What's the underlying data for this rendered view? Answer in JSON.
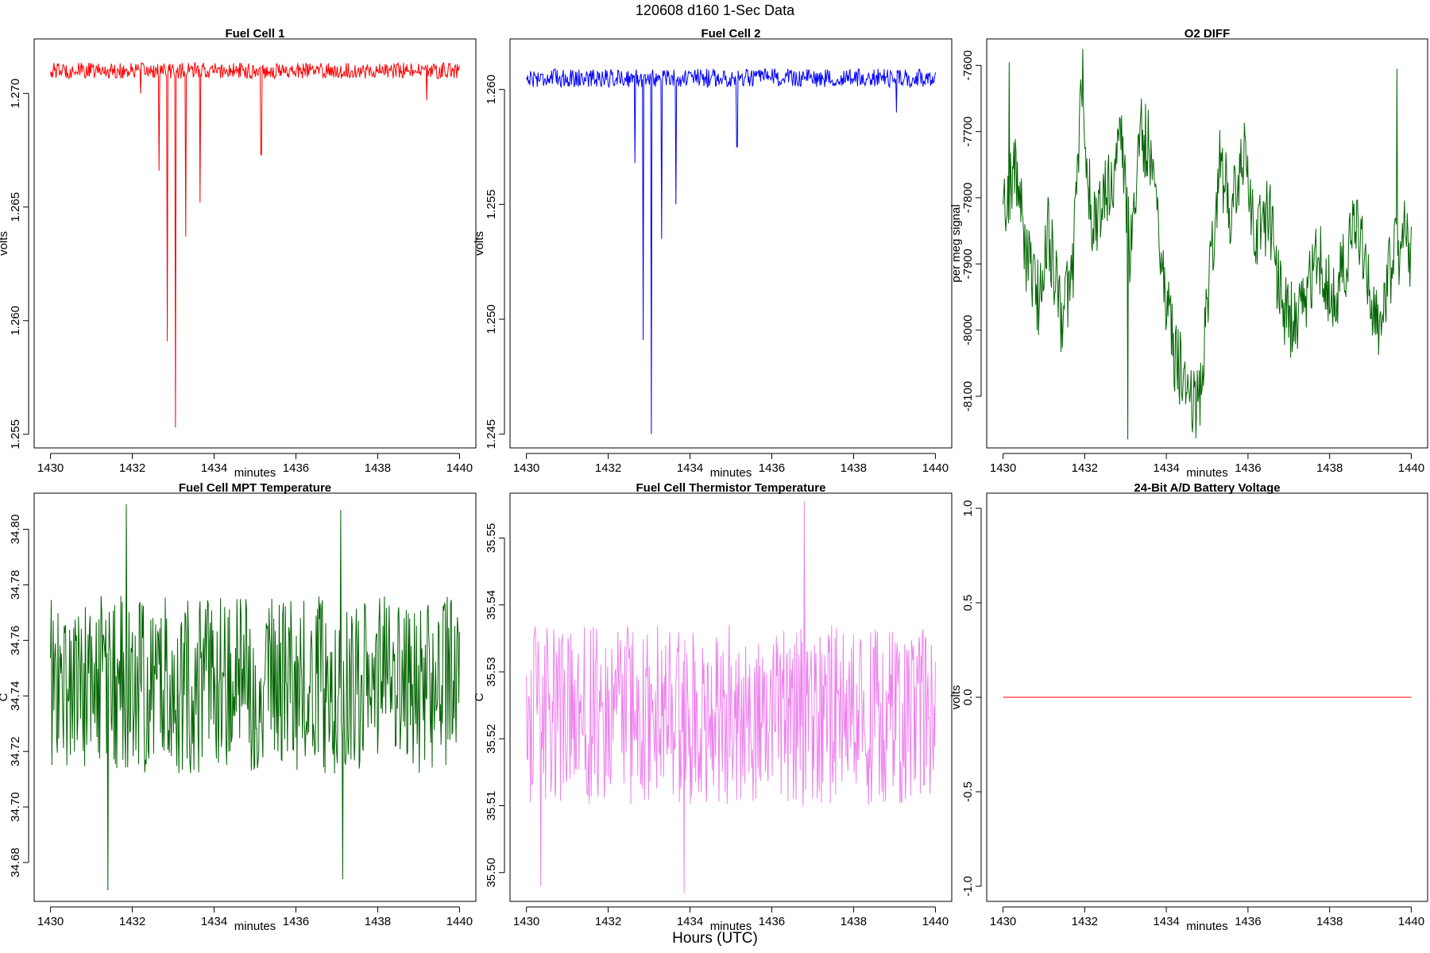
{
  "figure": {
    "title": "120608   d160   1-Sec Data",
    "xlabel": "Hours (UTC)"
  },
  "chart_data": [
    {
      "type": "line",
      "title": "Fuel Cell 1",
      "xlabel": "minutes",
      "ylabel": "volts",
      "xlim": [
        1429.6,
        1440.4
      ],
      "ylim": [
        1.2544,
        1.2724
      ],
      "xticks": [
        1430,
        1432,
        1434,
        1436,
        1438,
        1440
      ],
      "yticks": [
        1.255,
        1.26,
        1.265,
        1.27
      ],
      "ytick_labels": [
        "1.255",
        "1.260",
        "1.265",
        "1.270"
      ],
      "color": "#ff0000",
      "series": {
        "baseline": 1.271,
        "noise": 0.00035,
        "spikes": [
          {
            "x": 1432.65,
            "y": 1.2666
          },
          {
            "x": 1432.85,
            "y": 1.2591
          },
          {
            "x": 1433.05,
            "y": 1.2553
          },
          {
            "x": 1433.3,
            "y": 1.2637
          },
          {
            "x": 1433.65,
            "y": 1.2652
          },
          {
            "x": 1435.15,
            "y": 1.2673
          },
          {
            "x": 1432.2,
            "y": 1.27
          },
          {
            "x": 1439.2,
            "y": 1.2697
          }
        ]
      }
    },
    {
      "type": "line",
      "title": "Fuel Cell 2",
      "xlabel": "minutes",
      "ylabel": "volts",
      "xlim": [
        1429.6,
        1440.4
      ],
      "ylim": [
        1.2444,
        1.2622
      ],
      "xticks": [
        1430,
        1432,
        1434,
        1436,
        1438,
        1440
      ],
      "yticks": [
        1.245,
        1.25,
        1.255,
        1.26
      ],
      "ytick_labels": [
        "1.245",
        "1.250",
        "1.255",
        "1.260"
      ],
      "color": "#0000ff",
      "series": {
        "baseline": 1.2605,
        "noise": 0.0004,
        "spikes": [
          {
            "x": 1432.65,
            "y": 1.2568
          },
          {
            "x": 1432.85,
            "y": 1.2491
          },
          {
            "x": 1433.05,
            "y": 1.245
          },
          {
            "x": 1433.3,
            "y": 1.2535
          },
          {
            "x": 1433.65,
            "y": 1.255
          },
          {
            "x": 1435.15,
            "y": 1.2575
          },
          {
            "x": 1439.05,
            "y": 1.259
          }
        ]
      }
    },
    {
      "type": "line",
      "title": "O2 DIFF",
      "xlabel": "minutes",
      "ylabel": "per meg signal",
      "xlim": [
        1429.6,
        1440.4
      ],
      "ylim": [
        -8178,
        -7560
      ],
      "xticks": [
        1430,
        1432,
        1434,
        1436,
        1438,
        1440
      ],
      "yticks": [
        -8100,
        -8000,
        -7900,
        -7800,
        -7700,
        -7600
      ],
      "ytick_labels": [
        "-8100",
        "-8000",
        "-7900",
        "-7800",
        "-7700",
        "-7600"
      ],
      "color": "#006400",
      "series": {
        "anchors": [
          [
            1430.0,
            -7820
          ],
          [
            1430.3,
            -7750
          ],
          [
            1430.6,
            -7900
          ],
          [
            1430.9,
            -7960
          ],
          [
            1431.1,
            -7840
          ],
          [
            1431.4,
            -7980
          ],
          [
            1431.7,
            -7920
          ],
          [
            1431.9,
            -7650
          ],
          [
            1432.2,
            -7850
          ],
          [
            1432.6,
            -7780
          ],
          [
            1432.9,
            -7720
          ],
          [
            1433.1,
            -7880
          ],
          [
            1433.4,
            -7700
          ],
          [
            1433.7,
            -7750
          ],
          [
            1433.9,
            -7900
          ],
          [
            1434.2,
            -8040
          ],
          [
            1434.5,
            -8080
          ],
          [
            1434.8,
            -8120
          ],
          [
            1435.0,
            -7950
          ],
          [
            1435.3,
            -7750
          ],
          [
            1435.6,
            -7820
          ],
          [
            1435.9,
            -7740
          ],
          [
            1436.2,
            -7860
          ],
          [
            1436.5,
            -7820
          ],
          [
            1436.8,
            -7950
          ],
          [
            1437.1,
            -7990
          ],
          [
            1437.4,
            -7960
          ],
          [
            1437.7,
            -7880
          ],
          [
            1438.0,
            -7950
          ],
          [
            1438.3,
            -7920
          ],
          [
            1438.6,
            -7850
          ],
          [
            1438.9,
            -7890
          ],
          [
            1439.2,
            -8010
          ],
          [
            1439.5,
            -7900
          ],
          [
            1439.8,
            -7860
          ],
          [
            1440.0,
            -7880
          ]
        ],
        "noise": 60,
        "spikes": [
          {
            "x": 1433.05,
            "y": -8165
          },
          {
            "x": 1430.15,
            "y": -7595
          },
          {
            "x": 1431.95,
            "y": -7575
          },
          {
            "x": 1439.65,
            "y": -7605
          }
        ]
      }
    },
    {
      "type": "line",
      "title": "Fuel Cell MPT Temperature",
      "xlabel": "minutes",
      "ylabel": "C",
      "xlim": [
        1429.6,
        1440.4
      ],
      "ylim": [
        34.666,
        34.813
      ],
      "xticks": [
        1430,
        1432,
        1434,
        1436,
        1438,
        1440
      ],
      "yticks": [
        34.68,
        34.7,
        34.72,
        34.74,
        34.76,
        34.78,
        34.8
      ],
      "ytick_labels": [
        "34.68",
        "34.70",
        "34.72",
        "34.74",
        "34.76",
        "34.78",
        "34.80"
      ],
      "color": "#006400",
      "series": {
        "baseline": 34.744,
        "noise": 0.032,
        "spikes": [
          {
            "x": 1431.4,
            "y": 34.67
          },
          {
            "x": 1431.85,
            "y": 34.809
          },
          {
            "x": 1437.15,
            "y": 34.674
          },
          {
            "x": 1437.1,
            "y": 34.807
          }
        ]
      }
    },
    {
      "type": "line",
      "title": "Fuel Cell Thermistor Temperature",
      "xlabel": "minutes",
      "ylabel": "C",
      "xlim": [
        1429.6,
        1440.4
      ],
      "ylim": [
        35.4957,
        35.5567
      ],
      "xticks": [
        1430,
        1432,
        1434,
        1436,
        1438,
        1440
      ],
      "yticks": [
        35.5,
        35.51,
        35.52,
        35.53,
        35.54,
        35.55
      ],
      "ytick_labels": [
        "35.50",
        "35.51",
        "35.52",
        "35.53",
        "35.54",
        "35.55"
      ],
      "color": "#ee82ee",
      "series": {
        "baseline": 35.5235,
        "noise": 0.0135,
        "spikes": [
          {
            "x": 1433.85,
            "y": 35.497
          },
          {
            "x": 1436.8,
            "y": 35.5555
          },
          {
            "x": 1430.35,
            "y": 35.498
          }
        ]
      }
    },
    {
      "type": "line",
      "title": "24-Bit A/D Battery Voltage",
      "xlabel": "minutes",
      "ylabel": "volts",
      "xlim": [
        1429.6,
        1440.4
      ],
      "ylim": [
        -1.08,
        1.08
      ],
      "xticks": [
        1430,
        1432,
        1434,
        1436,
        1438,
        1440
      ],
      "yticks": [
        -1.0,
        -0.5,
        0.0,
        0.5,
        1.0
      ],
      "ytick_labels": [
        "-1.0",
        "-0.5",
        "0.0",
        "0.5",
        "1.0"
      ],
      "color": "#ff0000",
      "series": {
        "x": [
          1430,
          1440
        ],
        "y": [
          0,
          0
        ]
      }
    }
  ]
}
